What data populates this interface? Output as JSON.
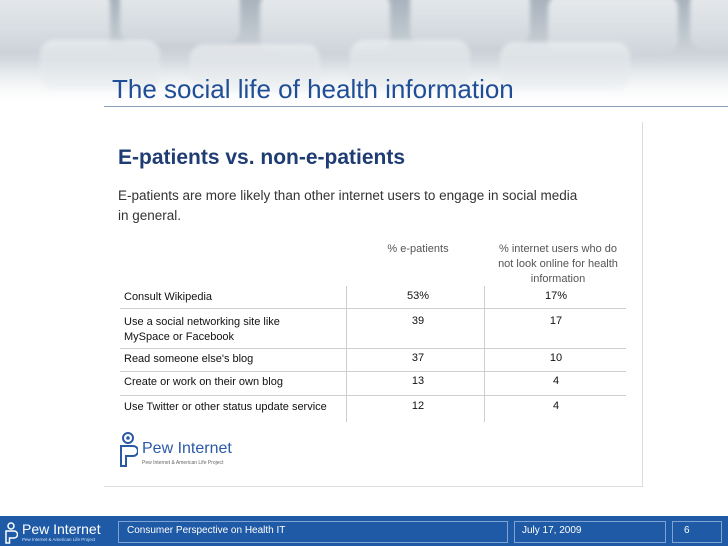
{
  "slide_title": "The social life of health information",
  "panel": {
    "heading": "E-patients vs. non-e-patients",
    "subtitle": "E-patients are more likely than other internet users to engage in social media in general."
  },
  "table": {
    "columns": [
      "% e-patients",
      "% internet users who do not look online for health information"
    ],
    "rows": [
      {
        "label": "Consult Wikipedia",
        "e_patients": "53%",
        "others": "17%"
      },
      {
        "label": "Use a social networking site like MySpace or Facebook",
        "e_patients": "39",
        "others": "17"
      },
      {
        "label": "Read someone else's blog",
        "e_patients": "37",
        "others": "10"
      },
      {
        "label": "Create or work on their own blog",
        "e_patients": "13",
        "others": "4"
      },
      {
        "label": "Use Twitter or other status update service",
        "e_patients": "12",
        "others": "4"
      }
    ]
  },
  "logo": {
    "name": "Pew Internet",
    "tagline": "Pew Internet & American Life Project"
  },
  "footer": {
    "logo_name": "Pew Internet",
    "logo_tagline": "Pew Internet & American Life Project",
    "presentation": "Consumer Perspective on Health IT",
    "date": "July 17, 2009",
    "page": "6"
  },
  "colors": {
    "title": "#1f4e96",
    "heading": "#1f3c73",
    "footer_bg": "#1f5aa6"
  }
}
